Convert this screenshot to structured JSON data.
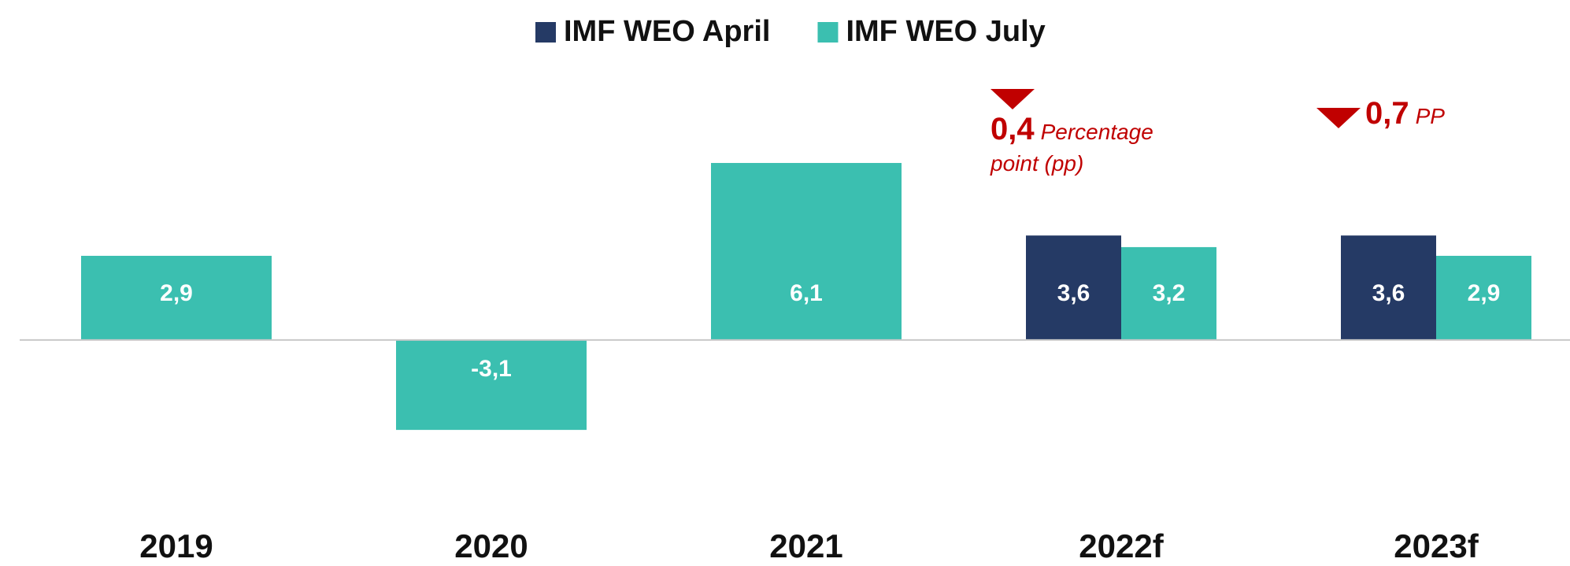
{
  "chart_data": {
    "type": "bar",
    "categories": [
      "2019",
      "2020",
      "2021",
      "2022f",
      "2023f"
    ],
    "series": [
      {
        "name": "IMF WEO April",
        "color": "#253a65",
        "values": [
          null,
          null,
          null,
          3.6,
          3.6
        ],
        "value_labels": [
          null,
          null,
          null,
          "3,6",
          "3,6"
        ]
      },
      {
        "name": "IMF WEO July",
        "color": "#3bbfb0",
        "values": [
          2.9,
          -3.1,
          6.1,
          3.2,
          2.9
        ],
        "value_labels": [
          "2,9",
          "-3,1",
          "6,1",
          "3,2",
          "2,9"
        ]
      }
    ],
    "annotations": [
      {
        "category": "2022f",
        "value": 0.4,
        "label": "0,4",
        "text": "Percentage point (pp)"
      },
      {
        "category": "2023f",
        "value": 0.7,
        "label": "0,7",
        "text": "PP"
      }
    ],
    "ylim": [
      -6,
      8
    ]
  }
}
